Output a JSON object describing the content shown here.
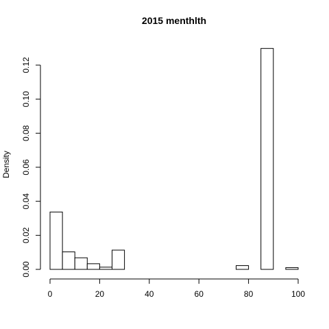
{
  "chart_data": {
    "type": "bar",
    "title": "2015 menthlth",
    "xlabel": "",
    "ylabel": "Density",
    "xlim": [
      0,
      100
    ],
    "ylim": [
      0,
      0.12
    ],
    "bin_width": 5,
    "x_ticks": [
      0,
      20,
      40,
      60,
      80,
      100
    ],
    "y_ticks": [
      0.0,
      0.02,
      0.04,
      0.06,
      0.08,
      0.1,
      0.12
    ],
    "y_tick_labels": [
      "0.00",
      "0.02",
      "0.04",
      "0.06",
      "0.08",
      "0.10",
      "0.12"
    ],
    "bins": [
      {
        "start": 0,
        "end": 5,
        "density": 0.0337
      },
      {
        "start": 5,
        "end": 10,
        "density": 0.0103
      },
      {
        "start": 10,
        "end": 15,
        "density": 0.0068
      },
      {
        "start": 15,
        "end": 20,
        "density": 0.0033
      },
      {
        "start": 20,
        "end": 25,
        "density": 0.0013
      },
      {
        "start": 25,
        "end": 30,
        "density": 0.0113
      },
      {
        "start": 30,
        "end": 35,
        "density": 0.0
      },
      {
        "start": 35,
        "end": 40,
        "density": 0.0
      },
      {
        "start": 40,
        "end": 45,
        "density": 0.0
      },
      {
        "start": 45,
        "end": 50,
        "density": 0.0
      },
      {
        "start": 50,
        "end": 55,
        "density": 0.0
      },
      {
        "start": 55,
        "end": 60,
        "density": 0.0
      },
      {
        "start": 60,
        "end": 65,
        "density": 0.0
      },
      {
        "start": 65,
        "end": 70,
        "density": 0.0
      },
      {
        "start": 70,
        "end": 75,
        "density": 0.0
      },
      {
        "start": 75,
        "end": 80,
        "density": 0.0022
      },
      {
        "start": 80,
        "end": 85,
        "density": 0.0
      },
      {
        "start": 85,
        "end": 90,
        "density": 0.1298
      },
      {
        "start": 90,
        "end": 95,
        "density": 0.0
      },
      {
        "start": 95,
        "end": 100,
        "density": 0.001
      }
    ],
    "grid": false,
    "legend": "none"
  }
}
